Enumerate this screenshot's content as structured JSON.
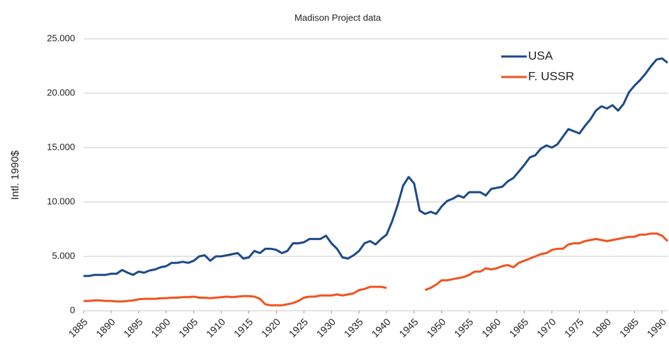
{
  "chart_data": {
    "type": "line",
    "title": "Madison Project data",
    "y_label": "Intl. 1990$",
    "x": [
      1885,
      1886,
      1887,
      1888,
      1889,
      1890,
      1891,
      1892,
      1893,
      1894,
      1895,
      1896,
      1897,
      1898,
      1899,
      1900,
      1901,
      1902,
      1903,
      1904,
      1905,
      1906,
      1907,
      1908,
      1909,
      1910,
      1911,
      1912,
      1913,
      1914,
      1915,
      1916,
      1917,
      1918,
      1919,
      1920,
      1921,
      1922,
      1923,
      1924,
      1925,
      1926,
      1927,
      1928,
      1929,
      1930,
      1931,
      1932,
      1933,
      1934,
      1935,
      1936,
      1937,
      1938,
      1939,
      1940,
      1941,
      1942,
      1943,
      1944,
      1945,
      1946,
      1947,
      1948,
      1949,
      1950,
      1951,
      1952,
      1953,
      1954,
      1955,
      1956,
      1957,
      1958,
      1959,
      1960,
      1961,
      1962,
      1963,
      1964,
      1965,
      1966,
      1967,
      1968,
      1969,
      1970,
      1971,
      1972,
      1973,
      1974,
      1975,
      1976,
      1977,
      1978,
      1979,
      1980,
      1981,
      1982,
      1983,
      1984,
      1985,
      1986,
      1987,
      1988,
      1989,
      1990,
      1991
    ],
    "series": [
      {
        "name": "USA",
        "color": "#1c4a8a",
        "values": [
          3200,
          3200,
          3300,
          3300,
          3300,
          3400,
          3400,
          3750,
          3500,
          3300,
          3600,
          3500,
          3700,
          3800,
          4000,
          4100,
          4400,
          4400,
          4500,
          4400,
          4600,
          5000,
          5100,
          4600,
          5000,
          5000,
          5100,
          5200,
          5300,
          4800,
          4900,
          5500,
          5300,
          5700,
          5700,
          5600,
          5300,
          5500,
          6200,
          6200,
          6300,
          6600,
          6600,
          6600,
          6900,
          6200,
          5700,
          4900,
          4800,
          5100,
          5500,
          6200,
          6400,
          6100,
          6600,
          7000,
          8200,
          9700,
          11500,
          12300,
          11700,
          9200,
          8900,
          9100,
          8900,
          9600,
          10100,
          10300,
          10600,
          10400,
          10900,
          10900,
          10900,
          10600,
          11200,
          11300,
          11400,
          11900,
          12200,
          12800,
          13400,
          14100,
          14300,
          14900,
          15200,
          15000,
          15300,
          16000,
          16700,
          16500,
          16300,
          17000,
          17600,
          18400,
          18800,
          18600,
          18900,
          18400,
          19000,
          20100,
          20700,
          21200,
          21800,
          22500,
          23100,
          23200,
          22800
        ]
      },
      {
        "name": "F. USSR",
        "color": "#f0541e",
        "values": [
          900,
          900,
          950,
          950,
          900,
          900,
          850,
          850,
          900,
          950,
          1050,
          1100,
          1100,
          1100,
          1150,
          1150,
          1200,
          1200,
          1250,
          1250,
          1300,
          1200,
          1200,
          1150,
          1200,
          1250,
          1300,
          1250,
          1300,
          1350,
          1350,
          1300,
          1100,
          600,
          500,
          500,
          500,
          600,
          700,
          900,
          1200,
          1300,
          1300,
          1400,
          1400,
          1400,
          1500,
          1400,
          1500,
          1600,
          1900,
          2000,
          2200,
          2200,
          2200,
          2100,
          null,
          null,
          null,
          null,
          null,
          null,
          1900,
          2100,
          2400,
          2800,
          2800,
          2900,
          3000,
          3100,
          3300,
          3600,
          3600,
          3900,
          3800,
          3900,
          4100,
          4200,
          4000,
          4400,
          4600,
          4800,
          5000,
          5200,
          5300,
          5600,
          5700,
          5700,
          6100,
          6200,
          6200,
          6400,
          6500,
          6600,
          6500,
          6400,
          6500,
          6600,
          6700,
          6800,
          6800,
          7000,
          7000,
          7100,
          7100,
          6900,
          6400
        ]
      }
    ],
    "xlim": [
      1885,
      1991
    ],
    "xticks": [
      1885,
      1890,
      1895,
      1900,
      1905,
      1910,
      1915,
      1920,
      1925,
      1930,
      1935,
      1940,
      1945,
      1950,
      1955,
      1960,
      1965,
      1970,
      1975,
      1980,
      1985,
      1990
    ],
    "ylim": [
      0,
      25000
    ],
    "yticks": [
      0,
      {
        "value": 5000,
        "label": "5.000"
      },
      {
        "value": 10000,
        "label": "10.000"
      },
      {
        "value": 15000,
        "label": "15.000"
      },
      {
        "value": 20000,
        "label": "20.000"
      },
      {
        "value": 25000,
        "label": "25.000"
      }
    ],
    "grid": true,
    "legend": "upper right"
  }
}
